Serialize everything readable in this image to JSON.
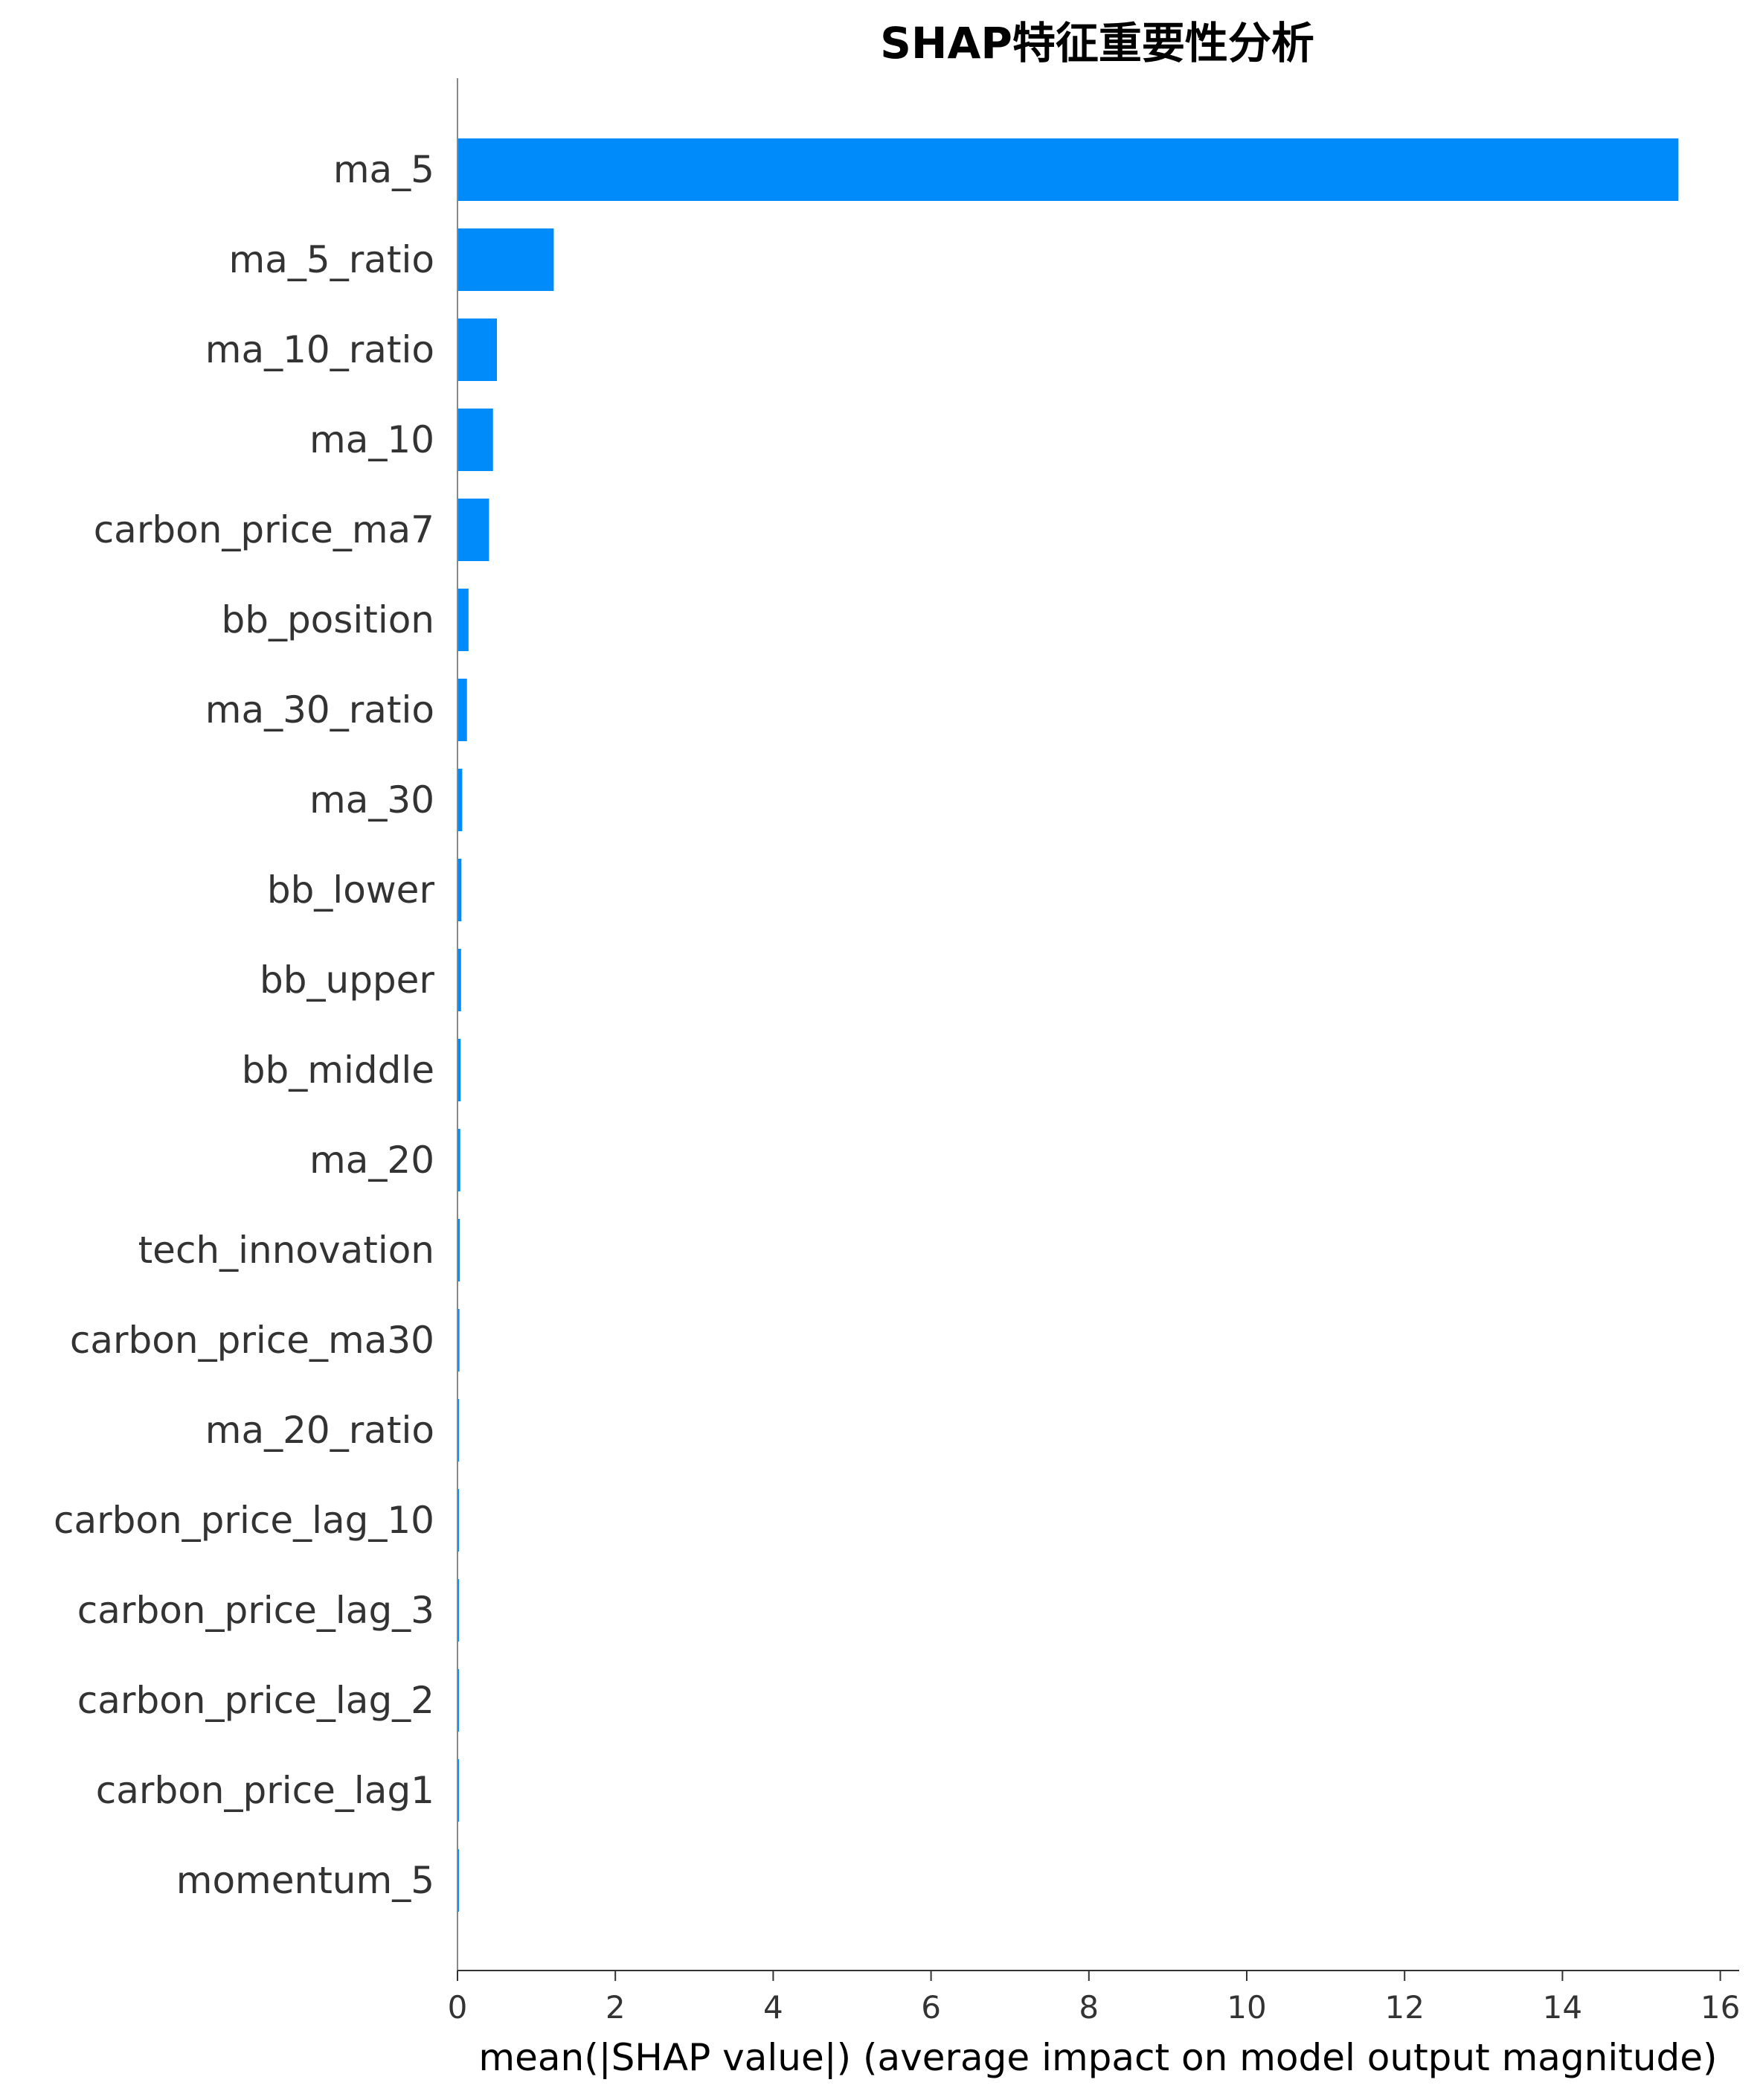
{
  "chart_data": {
    "type": "bar",
    "orientation": "horizontal",
    "title": "SHAP特征重要性分析",
    "xlabel": "mean(|SHAP value|) (average impact on model output magnitude)",
    "ylabel": "",
    "xlim": [
      0,
      16.3
    ],
    "xticks": [
      0,
      2,
      4,
      6,
      8,
      10,
      12,
      14,
      16
    ],
    "grid": false,
    "legend": "none",
    "bar_color": "#008bfb",
    "categories": [
      "ma_5",
      "ma_5_ratio",
      "ma_10_ratio",
      "ma_10",
      "carbon_price_ma7",
      "bb_position",
      "ma_30_ratio",
      "ma_30",
      "bb_lower",
      "bb_upper",
      "bb_middle",
      "ma_20",
      "tech_innovation",
      "carbon_price_ma30",
      "ma_20_ratio",
      "carbon_price_lag_10",
      "carbon_price_lag_3",
      "carbon_price_lag_2",
      "carbon_price_lag1",
      "momentum_5"
    ],
    "values": [
      15.47,
      1.22,
      0.5,
      0.45,
      0.4,
      0.14,
      0.12,
      0.06,
      0.05,
      0.045,
      0.04,
      0.035,
      0.03,
      0.025,
      0.02,
      0.015,
      0.013,
      0.01,
      0.008,
      0.004
    ]
  }
}
